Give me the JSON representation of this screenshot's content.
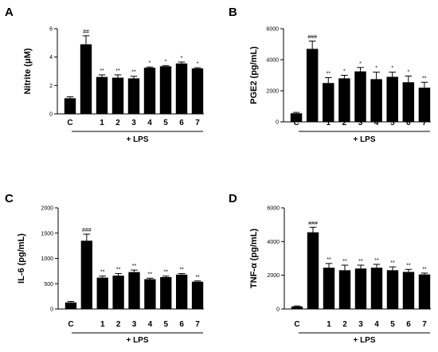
{
  "chart_data": [
    {
      "type": "bar",
      "panel": "A",
      "ylabel": "Nitrite (μM)",
      "ylim": [
        0,
        6
      ],
      "yticks": [
        "0",
        "2",
        "4",
        "6"
      ],
      "categories": [
        "C",
        "",
        "1",
        "2",
        "3",
        "4",
        "5",
        "6",
        "7"
      ],
      "values": [
        1.1,
        4.9,
        2.6,
        2.55,
        2.5,
        3.25,
        3.35,
        3.55,
        3.2
      ],
      "errors": [
        0.1,
        0.6,
        0.15,
        0.2,
        0.15,
        0.05,
        0.05,
        0.1,
        0.05
      ],
      "annotations": [
        "",
        "##",
        "**",
        "**",
        "**",
        "*",
        "*",
        "*",
        "*"
      ],
      "xlabel": "+ LPS"
    },
    {
      "type": "bar",
      "panel": "B",
      "ylabel": "PGE2 (pg/mL)",
      "ylim": [
        0,
        6000
      ],
      "yticks": [
        "0",
        "2000",
        "4000",
        "6000"
      ],
      "categories": [
        "C",
        "",
        "1",
        "2",
        "3",
        "4",
        "5",
        "6",
        "7"
      ],
      "values": [
        550,
        4700,
        2500,
        2800,
        3250,
        2750,
        2900,
        2550,
        2200
      ],
      "errors": [
        60,
        500,
        350,
        200,
        250,
        450,
        300,
        400,
        350
      ],
      "annotations": [
        "",
        "###",
        "**",
        "*",
        "*",
        "*",
        "*",
        "*",
        "**"
      ],
      "xlabel": "+ LPS"
    },
    {
      "type": "bar",
      "panel": "C",
      "ylabel": "IL-6 (pg/mL)",
      "ylim": [
        0,
        2000
      ],
      "yticks": [
        "0",
        "500",
        "1000",
        "1500",
        "2000"
      ],
      "categories": [
        "C",
        "",
        "1",
        "2",
        "3",
        "4",
        "5",
        "6",
        "7"
      ],
      "values": [
        130,
        1350,
        620,
        660,
        730,
        590,
        630,
        680,
        540
      ],
      "errors": [
        20,
        130,
        30,
        40,
        40,
        20,
        20,
        20,
        15
      ],
      "annotations": [
        "",
        "###",
        "**",
        "**",
        "**",
        "**",
        "**",
        "**",
        "**"
      ],
      "xlabel": "+ LPS"
    },
    {
      "type": "bar",
      "panel": "D",
      "ylabel": "TNF-α (pg/mL)",
      "ylim": [
        0,
        6000
      ],
      "yticks": [
        "0",
        "2000",
        "4000",
        "6000"
      ],
      "categories": [
        "C",
        "",
        "1",
        "2",
        "3",
        "4",
        "5",
        "6",
        "7"
      ],
      "values": [
        150,
        4550,
        2450,
        2300,
        2400,
        2450,
        2300,
        2200,
        2050
      ],
      "errors": [
        30,
        300,
        250,
        300,
        200,
        200,
        200,
        150,
        80
      ],
      "annotations": [
        "",
        "###",
        "**",
        "**",
        "**",
        "**",
        "**",
        "**",
        "**"
      ],
      "xlabel": "+ LPS"
    }
  ]
}
